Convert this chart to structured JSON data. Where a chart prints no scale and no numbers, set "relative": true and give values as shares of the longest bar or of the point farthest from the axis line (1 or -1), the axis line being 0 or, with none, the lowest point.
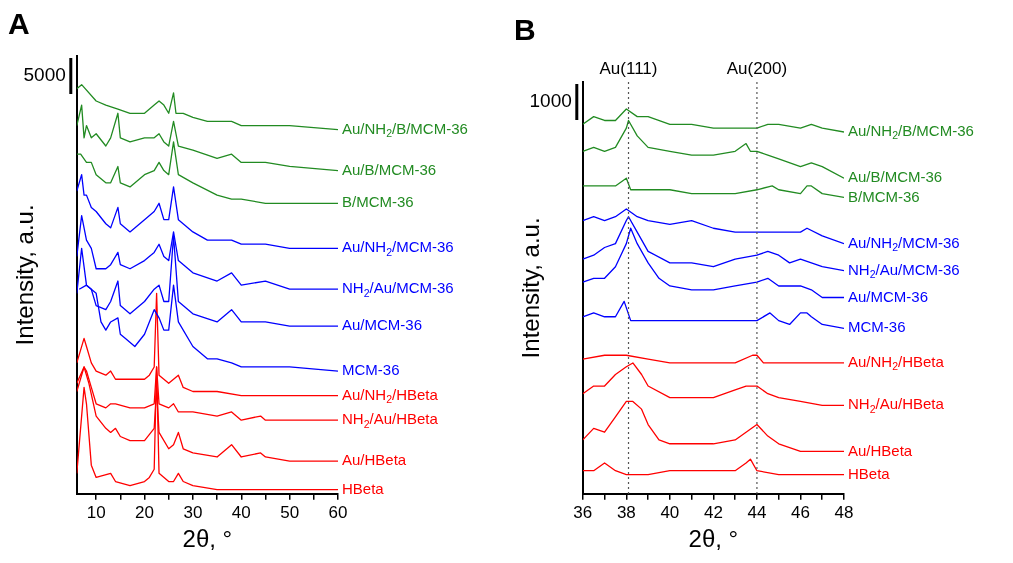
{
  "chart_data": [
    {
      "type": "line",
      "title": "A",
      "xlabel": "2θ, °",
      "ylabel": "Intensity, a.u.",
      "relative": true,
      "xlim": [
        6,
        60
      ],
      "xticks": [
        10,
        {
          "value": 15,
          "label": null
        },
        20,
        {
          "value": 25,
          "label": null
        },
        30,
        {
          "value": 35,
          "label": null
        },
        40,
        {
          "value": 45,
          "label": null
        },
        50,
        {
          "value": 55,
          "label": null
        },
        60
      ],
      "tick_labels": "x",
      "grid": false,
      "legend": false,
      "annotations": [
        "5000"
      ],
      "series": [
        {
          "name": "Au/NH$_{2}$/B/MCM-36",
          "color": "#228b22",
          "x": [
            6,
            7,
            10,
            12,
            14.5,
            17,
            20,
            22,
            23,
            24,
            25,
            26,
            26.5,
            28,
            30,
            33,
            38,
            40,
            45,
            50,
            60
          ],
          "values": [
            0.99,
            1.0,
            0.96,
            0.95,
            0.94,
            0.93,
            0.93,
            0.95,
            0.96,
            0.95,
            0.93,
            0.98,
            0.93,
            0.93,
            0.92,
            0.91,
            0.91,
            0.9,
            0.9,
            0.9,
            0.89
          ]
        },
        {
          "name": "Au/B/MCM-36",
          "color": "#228b22",
          "x": [
            6,
            7,
            7.5,
            8,
            9,
            10,
            12,
            13,
            14.5,
            15,
            17,
            20,
            22,
            23,
            24,
            25,
            26,
            27,
            30,
            35,
            38,
            40,
            45,
            50,
            60
          ],
          "values": [
            0.9,
            0.95,
            0.87,
            0.9,
            0.87,
            0.88,
            0.85,
            0.87,
            0.93,
            0.87,
            0.86,
            0.87,
            0.87,
            0.88,
            0.86,
            0.85,
            0.91,
            0.85,
            0.84,
            0.82,
            0.83,
            0.81,
            0.81,
            0.8,
            0.79
          ]
        },
        {
          "name": "B/MCM-36",
          "color": "#228b22",
          "x": [
            6,
            6.8,
            8,
            9,
            10,
            12,
            13,
            14.5,
            15,
            17,
            20,
            22,
            23,
            24,
            25,
            26,
            27,
            30,
            35,
            38,
            40,
            45,
            50,
            60
          ],
          "values": [
            0.83,
            0.83,
            0.81,
            0.81,
            0.78,
            0.76,
            0.76,
            0.8,
            0.76,
            0.75,
            0.78,
            0.79,
            0.81,
            0.79,
            0.78,
            0.86,
            0.78,
            0.76,
            0.73,
            0.72,
            0.72,
            0.71,
            0.71,
            0.71
          ]
        },
        {
          "name": "Au/NH$_{2}$/MCM-36",
          "color": "#0000ff",
          "x": [
            6,
            7,
            7.5,
            8,
            9,
            10,
            12,
            13,
            14.5,
            15,
            17,
            20,
            22,
            23,
            24,
            25,
            26,
            27,
            30,
            33,
            38,
            40,
            45,
            50,
            60
          ],
          "values": [
            0.74,
            0.78,
            0.73,
            0.73,
            0.7,
            0.69,
            0.66,
            0.65,
            0.7,
            0.66,
            0.64,
            0.67,
            0.69,
            0.71,
            0.67,
            0.67,
            0.75,
            0.67,
            0.64,
            0.62,
            0.62,
            0.61,
            0.61,
            0.6,
            0.6
          ]
        },
        {
          "name": "NH$_{2}$/Au/MCM-36",
          "color": "#0000ff",
          "x": [
            6,
            7,
            8,
            9,
            10,
            12,
            13,
            14.5,
            15,
            17,
            20,
            22,
            23,
            24,
            25,
            26,
            27,
            30,
            35,
            38,
            40,
            45,
            50,
            60
          ],
          "values": [
            0.58,
            0.68,
            0.62,
            0.6,
            0.55,
            0.55,
            0.56,
            0.59,
            0.56,
            0.55,
            0.57,
            0.59,
            0.61,
            0.58,
            0.57,
            0.64,
            0.57,
            0.54,
            0.52,
            0.54,
            0.51,
            0.52,
            0.5,
            0.5
          ]
        },
        {
          "name": "Au/MCM-36",
          "color": "#0000ff",
          "x": [
            6,
            7,
            8,
            9,
            10,
            12,
            13,
            14.5,
            15,
            17,
            20,
            22,
            23,
            24,
            25,
            26,
            27,
            30,
            35,
            38,
            40,
            45,
            50,
            60
          ],
          "values": [
            0.49,
            0.6,
            0.51,
            0.5,
            0.46,
            0.45,
            0.47,
            0.52,
            0.46,
            0.44,
            0.47,
            0.5,
            0.51,
            0.47,
            0.47,
            0.63,
            0.47,
            0.44,
            0.42,
            0.45,
            0.42,
            0.42,
            0.41,
            0.41
          ]
        },
        {
          "name": "MCM-36",
          "color": "#0000ff",
          "x": [
            6.5,
            8,
            10,
            11,
            12,
            13,
            14.5,
            15,
            16,
            18,
            20,
            22,
            23,
            24,
            25,
            26,
            27,
            30,
            33,
            35,
            38,
            40,
            45,
            50,
            60
          ],
          "values": [
            0.5,
            0.51,
            0.49,
            0.42,
            0.4,
            0.42,
            0.43,
            0.39,
            0.38,
            0.36,
            0.39,
            0.45,
            0.43,
            0.4,
            0.4,
            0.51,
            0.42,
            0.36,
            0.33,
            0.33,
            0.32,
            0.31,
            0.31,
            0.31,
            0.3
          ]
        },
        {
          "name": "Au/NH$_{2}$/HBeta",
          "color": "#ff0000",
          "x": [
            6,
            7.5,
            8,
            9,
            10,
            12,
            13,
            14,
            17,
            20,
            21,
            22,
            22.5,
            23,
            25,
            26,
            27,
            28,
            30,
            35,
            40,
            45,
            50,
            60
          ],
          "values": [
            0.32,
            0.38,
            0.36,
            0.32,
            0.3,
            0.29,
            0.3,
            0.28,
            0.28,
            0.28,
            0.29,
            0.31,
            0.49,
            0.29,
            0.27,
            0.28,
            0.29,
            0.26,
            0.25,
            0.25,
            0.24,
            0.24,
            0.24,
            0.24
          ]
        },
        {
          "name": "NH$_{2}$/Au/HBeta",
          "color": "#ff0000",
          "x": [
            6,
            7.5,
            8,
            9,
            10,
            12,
            13,
            14,
            17,
            20,
            22,
            22.5,
            23,
            25,
            26,
            27,
            28,
            30,
            35,
            38,
            40,
            44,
            45,
            50,
            60
          ],
          "values": [
            0.27,
            0.31,
            0.3,
            0.26,
            0.22,
            0.21,
            0.22,
            0.22,
            0.21,
            0.21,
            0.22,
            0.31,
            0.22,
            0.21,
            0.22,
            0.2,
            0.2,
            0.2,
            0.19,
            0.2,
            0.18,
            0.19,
            0.18,
            0.18,
            0.18
          ]
        },
        {
          "name": "Au/HBeta",
          "color": "#ff0000",
          "x": [
            6,
            7.5,
            8.5,
            10,
            12,
            13,
            14,
            15,
            17,
            20,
            22,
            22.5,
            23,
            25,
            26,
            27,
            28,
            30,
            35,
            38,
            40,
            44,
            45,
            50,
            60
          ],
          "values": [
            0.25,
            0.31,
            0.27,
            0.19,
            0.16,
            0.15,
            0.16,
            0.14,
            0.13,
            0.13,
            0.16,
            0.26,
            0.15,
            0.11,
            0.12,
            0.15,
            0.11,
            0.1,
            0.09,
            0.12,
            0.09,
            0.1,
            0.09,
            0.08,
            0.08
          ]
        },
        {
          "name": "HBeta",
          "color": "#ff0000",
          "x": [
            6,
            7.5,
            8,
            9,
            10,
            13,
            14,
            17,
            20,
            21,
            22,
            22.5,
            23,
            25,
            26,
            27,
            28,
            30,
            35,
            40,
            45,
            50,
            55,
            60
          ],
          "values": [
            0.05,
            0.26,
            0.22,
            0.07,
            0.04,
            0.05,
            0.03,
            0.02,
            0.03,
            0.04,
            0.06,
            0.31,
            0.05,
            0.03,
            0.03,
            0.05,
            0.03,
            0.02,
            0.01,
            0.01,
            0.01,
            0.01,
            0.01,
            0.01
          ]
        }
      ]
    },
    {
      "type": "line",
      "title": "B",
      "xlabel": "2θ, °",
      "ylabel": "Intensity, a.u.",
      "relative": true,
      "xlim": [
        36,
        48
      ],
      "xticks": [
        36,
        {
          "value": 37,
          "label": null
        },
        38,
        {
          "value": 39,
          "label": null
        },
        40,
        {
          "value": 41,
          "label": null
        },
        42,
        {
          "value": 43,
          "label": null
        },
        44,
        {
          "value": 45,
          "label": null
        },
        46,
        {
          "value": 47,
          "label": null
        },
        48
      ],
      "tick_labels": "x",
      "grid": false,
      "legend": false,
      "annotations": [
        "1000"
      ],
      "ref_lines": [
        {
          "axis": "x",
          "value": 38.1,
          "label": "Au(111)",
          "color": "#555555",
          "line_style": "dotted"
        },
        {
          "axis": "x",
          "value": 44.0,
          "label": "Au(200)",
          "color": "#555555",
          "line_style": "dotted"
        }
      ],
      "series": [
        {
          "name": "Au/NH$_{2}$/B/MCM-36",
          "color": "#228b22",
          "x": [
            36,
            36.5,
            37,
            37.5,
            38,
            38.5,
            39,
            40,
            41,
            42,
            43,
            44,
            44.5,
            45,
            46,
            46.5,
            47,
            48
          ],
          "values": [
            0.96,
            0.98,
            0.97,
            0.97,
            1.0,
            0.98,
            0.98,
            0.96,
            0.96,
            0.95,
            0.95,
            0.95,
            0.96,
            0.96,
            0.95,
            0.96,
            0.95,
            0.94
          ]
        },
        {
          "name": "Au/B/MCM-36",
          "color": "#228b22",
          "x": [
            36,
            36.5,
            37,
            37.5,
            38,
            38.1,
            38.5,
            39,
            40,
            41,
            42,
            43,
            43.5,
            43.7,
            44,
            44.5,
            45,
            46,
            46.5,
            47,
            48
          ],
          "values": [
            0.89,
            0.9,
            0.89,
            0.9,
            0.95,
            0.97,
            0.93,
            0.9,
            0.89,
            0.88,
            0.88,
            0.89,
            0.91,
            0.89,
            0.89,
            0.88,
            0.87,
            0.85,
            0.86,
            0.85,
            0.82
          ]
        },
        {
          "name": "B/MCM-36",
          "color": "#228b22",
          "x": [
            36,
            36.5,
            37,
            37.5,
            38,
            38.2,
            39,
            40,
            41,
            42,
            43,
            44,
            44.7,
            45,
            46,
            46.3,
            46.5,
            47,
            48
          ],
          "values": [
            0.8,
            0.8,
            0.8,
            0.8,
            0.82,
            0.79,
            0.79,
            0.79,
            0.78,
            0.78,
            0.78,
            0.79,
            0.8,
            0.79,
            0.78,
            0.8,
            0.8,
            0.78,
            0.77
          ]
        },
        {
          "name": "Au/NH$_{2}$/MCM-36",
          "color": "#0000ff",
          "x": [
            36,
            36.5,
            37,
            37.5,
            38,
            38.5,
            39,
            40,
            41,
            42,
            43,
            44,
            44.5,
            45,
            46,
            46.3,
            47,
            48
          ],
          "values": [
            0.71,
            0.72,
            0.71,
            0.72,
            0.74,
            0.72,
            0.71,
            0.7,
            0.71,
            0.69,
            0.68,
            0.68,
            0.68,
            0.68,
            0.68,
            0.69,
            0.67,
            0.65
          ]
        },
        {
          "name": "NH$_{2}$/Au/MCM-36",
          "color": "#0000ff",
          "x": [
            36,
            36.5,
            37,
            37.5,
            38,
            38.1,
            38.5,
            39,
            40,
            41,
            42,
            43,
            44,
            44.5,
            45,
            45.5,
            46,
            47,
            48
          ],
          "values": [
            0.61,
            0.62,
            0.64,
            0.65,
            0.71,
            0.72,
            0.68,
            0.63,
            0.6,
            0.6,
            0.59,
            0.61,
            0.62,
            0.63,
            0.62,
            0.6,
            0.61,
            0.59,
            0.58
          ]
        },
        {
          "name": "Au/MCM-36",
          "color": "#0000ff",
          "x": [
            36,
            36.5,
            37,
            37.5,
            38,
            38.2,
            38.5,
            39,
            39.5,
            40,
            41,
            42,
            43,
            44,
            44.5,
            45,
            46,
            46.5,
            47,
            48
          ],
          "values": [
            0.55,
            0.56,
            0.56,
            0.59,
            0.65,
            0.69,
            0.65,
            0.6,
            0.56,
            0.54,
            0.53,
            0.53,
            0.54,
            0.55,
            0.56,
            0.54,
            0.54,
            0.53,
            0.51,
            0.51
          ]
        },
        {
          "name": "MCM-36",
          "color": "#0000ff",
          "x": [
            36,
            36.5,
            37,
            37.5,
            37.9,
            38.2,
            39,
            40,
            41,
            42,
            43,
            43.5,
            44,
            44.6,
            45,
            45.5,
            46,
            46.3,
            46.5,
            47,
            48
          ],
          "values": [
            0.46,
            0.47,
            0.46,
            0.46,
            0.5,
            0.45,
            0.45,
            0.45,
            0.45,
            0.45,
            0.45,
            0.45,
            0.45,
            0.47,
            0.45,
            0.44,
            0.47,
            0.47,
            0.46,
            0.44,
            0.43
          ]
        },
        {
          "name": "Au/NH$_{2}$/HBeta",
          "color": "#ff0000",
          "x": [
            36,
            37,
            37.5,
            38,
            39,
            40,
            41,
            42,
            43,
            43.8,
            44,
            44.3,
            45,
            46,
            47,
            48
          ],
          "values": [
            0.35,
            0.36,
            0.36,
            0.36,
            0.35,
            0.34,
            0.34,
            0.34,
            0.34,
            0.36,
            0.36,
            0.34,
            0.34,
            0.34,
            0.34,
            0.34
          ]
        },
        {
          "name": "NH$_{2}$/Au/HBeta",
          "color": "#ff0000",
          "x": [
            36,
            36.5,
            37,
            37.5,
            38,
            38.3,
            38.7,
            39,
            40,
            41,
            42,
            43,
            43.5,
            44,
            44.5,
            45,
            46,
            47,
            48
          ],
          "values": [
            0.26,
            0.28,
            0.28,
            0.31,
            0.33,
            0.34,
            0.31,
            0.28,
            0.25,
            0.25,
            0.25,
            0.27,
            0.28,
            0.28,
            0.26,
            0.25,
            0.24,
            0.23,
            0.23
          ]
        },
        {
          "name": "Au/HBeta",
          "color": "#ff0000",
          "x": [
            36,
            36.5,
            37,
            37.5,
            38,
            38.3,
            38.7,
            39,
            39.5,
            40,
            41,
            42,
            43,
            43.5,
            44,
            44.5,
            45,
            46,
            47,
            48
          ],
          "values": [
            0.14,
            0.17,
            0.16,
            0.2,
            0.24,
            0.24,
            0.22,
            0.18,
            0.14,
            0.13,
            0.13,
            0.13,
            0.14,
            0.16,
            0.18,
            0.15,
            0.13,
            0.11,
            0.11,
            0.11
          ]
        },
        {
          "name": "HBeta",
          "color": "#ff0000",
          "x": [
            36,
            36.5,
            37,
            37.5,
            38,
            39,
            40,
            41,
            42,
            43,
            43.5,
            43.7,
            44,
            45,
            46,
            47,
            48
          ],
          "values": [
            0.06,
            0.06,
            0.08,
            0.06,
            0.05,
            0.05,
            0.06,
            0.06,
            0.06,
            0.06,
            0.08,
            0.09,
            0.06,
            0.05,
            0.05,
            0.05,
            0.05
          ]
        }
      ]
    }
  ]
}
